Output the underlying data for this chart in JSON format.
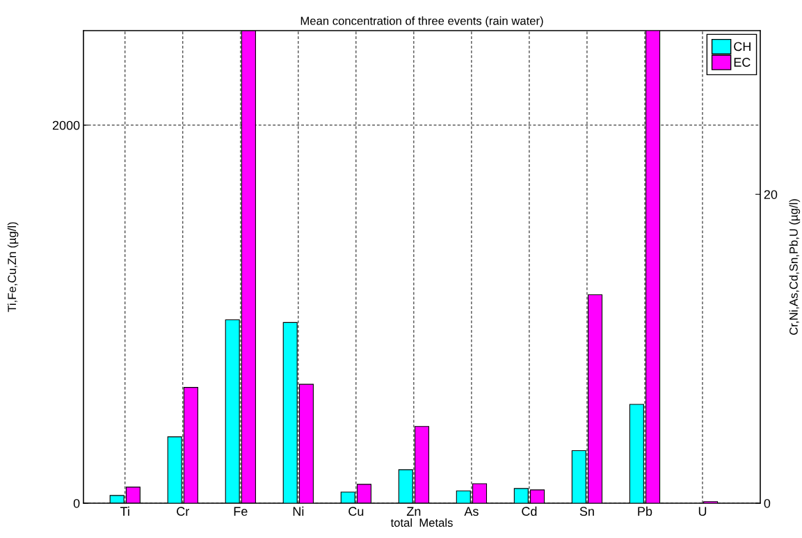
{
  "chart_data": {
    "type": "bar",
    "title": "Mean concentration of three events (rain water)",
    "xlabel": "total  Metals",
    "ylabel": "Ti,Fe,Cu,Zn (µg/l)",
    "y2label": "Cr,Ni,As,Cd,Sn,Pb,U (µg/l)",
    "categories": [
      "Ti",
      "Cr",
      "Fe",
      "Ni",
      "Cu",
      "Zn",
      "As",
      "Cd",
      "Sn",
      "Pb",
      "U"
    ],
    "series": [
      {
        "name": "CH",
        "color": "#00ffff",
        "values": [
          41,
          null,
          970,
          null,
          59,
          177,
          null,
          null,
          null,
          null,
          null
        ]
      },
      {
        "name": "EC",
        "color": "#ff00ff",
        "values": [
          85,
          null,
          2500,
          null,
          100,
          406,
          null,
          null,
          null,
          null,
          null
        ]
      },
      {
        "color": "#00ffff",
        "axis": "y2",
        "values": [
          null,
          4.3,
          null,
          11.7,
          null,
          null,
          0.8,
          0.95,
          3.4,
          6.4,
          null
        ]
      },
      {
        "color": "#ff00ff",
        "axis": "y2",
        "values": [
          null,
          7.5,
          null,
          7.7,
          null,
          null,
          1.26,
          0.86,
          13.5,
          30.6,
          0.1
        ]
      }
    ],
    "ylim": [
      0,
      2500
    ],
    "yticks": [
      0,
      2000
    ],
    "y2lim": [
      0,
      30.6
    ],
    "y2ticks": [
      0,
      20
    ],
    "grid": true,
    "legend": "top right"
  }
}
